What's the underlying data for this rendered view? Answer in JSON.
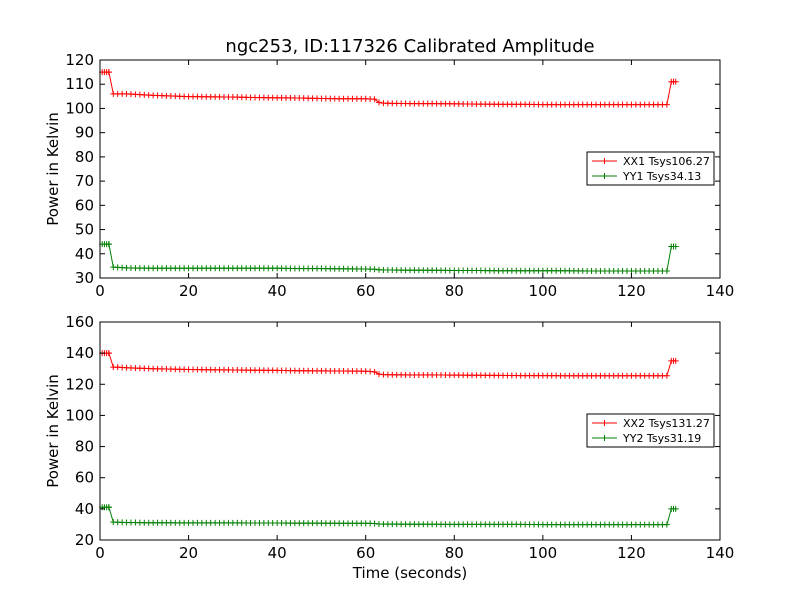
{
  "figure": {
    "title": "ngc253, ID:117326 Calibrated Amplitude"
  },
  "colors": {
    "red": "#ff0000",
    "green": "#008000"
  },
  "chart_data": [
    {
      "type": "line",
      "title": "ngc253, ID:117326 Calibrated Amplitude",
      "xlabel": "",
      "ylabel": "Power in Kelvin",
      "xlim": [
        0,
        140
      ],
      "ylim": [
        30,
        120
      ],
      "xticks": [
        0,
        20,
        40,
        60,
        80,
        100,
        120,
        140
      ],
      "yticks": [
        30,
        40,
        50,
        60,
        70,
        80,
        90,
        100,
        110,
        120
      ],
      "legend": "center-right",
      "grid": false,
      "series": [
        {
          "name": "XX1 Tsys106.27",
          "color": "#ff0000",
          "marker": "+",
          "segments": [
            {
              "x": [
                0.5,
                1,
                1.5,
                2
              ],
              "y": [
                115,
                115,
                115,
                115
              ]
            },
            {
              "x": [
                2,
                3,
                4,
                5,
                6,
                8,
                10,
                12,
                15,
                18,
                20,
                25,
                30,
                35,
                40,
                45,
                50,
                55,
                60,
                62,
                63,
                64,
                66,
                70,
                75,
                80,
                85,
                90,
                95,
                100,
                105,
                110,
                115,
                120,
                125,
                128
              ],
              "y": [
                115,
                106,
                106,
                106,
                106,
                105.8,
                105.6,
                105.4,
                105.2,
                105,
                104.9,
                104.8,
                104.7,
                104.5,
                104.4,
                104.3,
                104.1,
                104,
                104,
                103.8,
                102.5,
                102.2,
                102.1,
                102,
                102,
                101.9,
                101.8,
                101.7,
                101.7,
                101.6,
                101.6,
                101.6,
                101.6,
                101.6,
                101.6,
                101.6
              ]
            },
            {
              "x": [
                128,
                129
              ],
              "y": [
                101.6,
                111
              ]
            },
            {
              "x": [
                129,
                129.5,
                130
              ],
              "y": [
                111,
                111,
                111
              ]
            }
          ]
        },
        {
          "name": "YY1 Tsys34.13",
          "color": "#008000",
          "marker": "+",
          "segments": [
            {
              "x": [
                0.5,
                1,
                1.5,
                2
              ],
              "y": [
                44,
                44,
                44,
                44
              ]
            },
            {
              "x": [
                2,
                3,
                4,
                5,
                6,
                8,
                10,
                12,
                15,
                18,
                20,
                25,
                30,
                35,
                40,
                45,
                50,
                55,
                60,
                62,
                63,
                64,
                66,
                70,
                75,
                80,
                85,
                90,
                95,
                100,
                105,
                110,
                115,
                120,
                125,
                128
              ],
              "y": [
                44,
                34.5,
                34.4,
                34.3,
                34.2,
                34.1,
                34.1,
                34.0,
                34.0,
                34.0,
                34.0,
                34.0,
                34.0,
                34.0,
                34.0,
                33.9,
                33.9,
                33.8,
                33.7,
                33.6,
                33.4,
                33.3,
                33.3,
                33.2,
                33.2,
                33.1,
                33.1,
                33.0,
                33.0,
                33.0,
                33.0,
                32.9,
                32.9,
                32.9,
                32.9,
                32.9
              ]
            },
            {
              "x": [
                128,
                129
              ],
              "y": [
                32.9,
                43
              ]
            },
            {
              "x": [
                129,
                129.5,
                130
              ],
              "y": [
                43,
                43,
                43
              ]
            }
          ]
        }
      ]
    },
    {
      "type": "line",
      "title": "",
      "xlabel": "Time (seconds)",
      "ylabel": "Power in Kelvin",
      "xlim": [
        0,
        140
      ],
      "ylim": [
        20,
        160
      ],
      "xticks": [
        0,
        20,
        40,
        60,
        80,
        100,
        120,
        140
      ],
      "yticks": [
        20,
        40,
        60,
        80,
        100,
        120,
        140,
        160
      ],
      "legend": "center-right",
      "grid": false,
      "series": [
        {
          "name": "XX2 Tsys131.27",
          "color": "#ff0000",
          "marker": "+",
          "segments": [
            {
              "x": [
                0.5,
                1,
                1.5,
                2
              ],
              "y": [
                140,
                140,
                140,
                140
              ]
            },
            {
              "x": [
                2,
                3,
                4,
                5,
                6,
                8,
                10,
                12,
                15,
                18,
                20,
                25,
                30,
                35,
                40,
                45,
                50,
                55,
                60,
                62,
                63,
                64,
                66,
                70,
                75,
                80,
                85,
                90,
                95,
                100,
                105,
                110,
                115,
                120,
                125,
                128
              ],
              "y": [
                140,
                131,
                131,
                130.8,
                130.6,
                130.4,
                130.2,
                130,
                129.8,
                129.6,
                129.5,
                129.3,
                129.2,
                129,
                128.9,
                128.7,
                128.6,
                128.5,
                128.4,
                128,
                126.5,
                126.2,
                126.1,
                126,
                126,
                125.9,
                125.8,
                125.7,
                125.6,
                125.6,
                125.5,
                125.5,
                125.5,
                125.5,
                125.5,
                125.5
              ]
            },
            {
              "x": [
                128,
                129
              ],
              "y": [
                125.5,
                135
              ]
            },
            {
              "x": [
                129,
                129.5,
                130
              ],
              "y": [
                135,
                135,
                135
              ]
            }
          ]
        },
        {
          "name": "YY2 Tsys31.19",
          "color": "#008000",
          "marker": "+",
          "segments": [
            {
              "x": [
                0.5,
                1,
                1.5,
                2
              ],
              "y": [
                41,
                41,
                41,
                41
              ]
            },
            {
              "x": [
                2,
                3,
                4,
                5,
                6,
                8,
                10,
                12,
                15,
                18,
                20,
                25,
                30,
                35,
                40,
                45,
                50,
                55,
                60,
                62,
                63,
                64,
                66,
                70,
                75,
                80,
                85,
                90,
                95,
                100,
                105,
                110,
                115,
                120,
                125,
                128
              ],
              "y": [
                41,
                31.5,
                31.4,
                31.3,
                31.2,
                31.2,
                31.1,
                31.1,
                31.1,
                31.0,
                31.0,
                31.0,
                31.0,
                30.9,
                30.9,
                30.8,
                30.8,
                30.7,
                30.7,
                30.6,
                30.3,
                30.2,
                30.2,
                30.1,
                30.1,
                30.0,
                30.0,
                30.0,
                30.0,
                29.9,
                29.9,
                29.9,
                29.9,
                29.9,
                29.9,
                29.9
              ]
            },
            {
              "x": [
                128,
                129
              ],
              "y": [
                29.9,
                40
              ]
            },
            {
              "x": [
                129,
                129.5,
                130
              ],
              "y": [
                40,
                40,
                40
              ]
            }
          ]
        }
      ]
    }
  ]
}
